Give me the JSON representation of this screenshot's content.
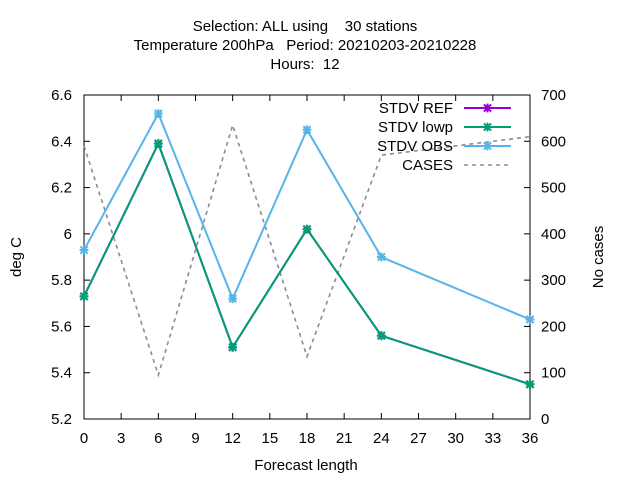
{
  "chart_data": {
    "type": "line",
    "title_lines": [
      "Selection: ALL using    30 stations",
      "Temperature 200hPa   Period: 20210203-20210228",
      "Hours:  12"
    ],
    "xlabel": "Forecast length",
    "ylabel": "deg C",
    "y2label": "No cases",
    "xlim": [
      0,
      36
    ],
    "ylim": [
      5.2,
      6.6
    ],
    "y2lim": [
      0,
      700
    ],
    "xticks": [
      "0",
      "3",
      "6",
      "9",
      "12",
      "15",
      "18",
      "21",
      "24",
      "27",
      "30",
      "33",
      "36"
    ],
    "yticks": [
      "5.2",
      "5.4",
      "5.6",
      "5.8",
      "6",
      "6.2",
      "6.4",
      "6.6"
    ],
    "y2ticks": [
      "0",
      "100",
      "200",
      "300",
      "400",
      "500",
      "600",
      "700"
    ],
    "grid": false,
    "legend_position": "top-right",
    "series": [
      {
        "name": "STDV REF",
        "axis": "y",
        "color": "#9400d3",
        "marker": "x-star",
        "dash": false,
        "x": [
          0,
          6,
          12,
          18,
          24,
          36
        ],
        "y": [
          5.73,
          6.39,
          5.51,
          6.02,
          5.56,
          5.35
        ]
      },
      {
        "name": "STDV lowp",
        "axis": "y",
        "color": "#009e73",
        "marker": "x-star",
        "dash": false,
        "x": [
          0,
          6,
          12,
          18,
          24,
          36
        ],
        "y": [
          5.73,
          6.39,
          5.51,
          6.02,
          5.56,
          5.35
        ]
      },
      {
        "name": "STDV OBS",
        "axis": "y",
        "color": "#56b4e9",
        "marker": "x-star",
        "dash": false,
        "x": [
          0,
          6,
          12,
          18,
          24,
          36
        ],
        "y": [
          5.93,
          6.52,
          5.72,
          6.45,
          5.9,
          5.63
        ]
      },
      {
        "name": "CASES",
        "axis": "y2",
        "color": "#8c8c8c",
        "marker": "none",
        "dash": true,
        "x": [
          0,
          6,
          12,
          18,
          24,
          36
        ],
        "y": [
          590,
          95,
          635,
          135,
          570,
          610
        ]
      }
    ]
  }
}
